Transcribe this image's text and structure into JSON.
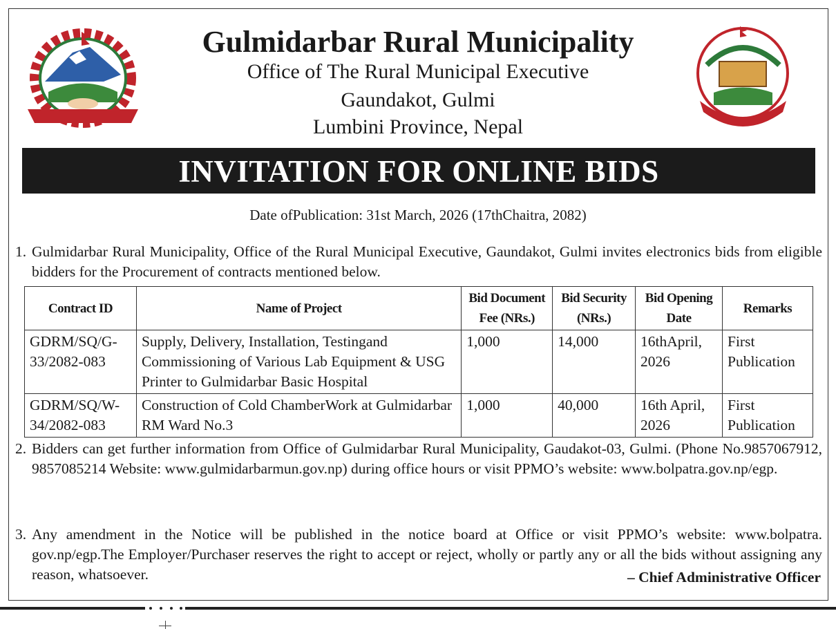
{
  "header": {
    "title": "Gulmidarbar Rural Municipality",
    "office": "Office of The Rural Municipal Executive",
    "address_line1": "Gaundakot, Gulmi",
    "address_line2": "Lumbini Province, Nepal",
    "left_logo": "nepal-government-emblem",
    "right_logo": "gulmidarbar-rural-municipality-seal"
  },
  "banner": "INVITATION FOR ONLINE BIDS",
  "publication_date": "Date ofPublication: 31st March, 2026 (17thChaitra, 2082)",
  "para1": {
    "num": "1.",
    "text": "Gulmidarbar Rural Municipality, Office of the Rural Municipal Executive, Gaundakot, Gulmi invites electronics bids from eligible bidders for the Procurement of contracts mentioned below."
  },
  "table": {
    "headers": [
      "Contract ID",
      "Name of Project",
      "Bid Document Fee (NRs.)",
      "Bid Security (NRs.)",
      "Bid Opening Date",
      "Remarks"
    ],
    "rows": [
      [
        "GDRM/SQ/G-33/2082-083",
        "Supply, Delivery, Installation, Testingand Commissioning of Various Lab Equipment & USG Printer to Gulmidarbar Basic Hospital",
        "1,000",
        "14,000",
        "16thApril, 2026",
        "First Publication"
      ],
      [
        "GDRM/SQ/W-34/2082-083",
        "Construction of Cold ChamberWork at Gulmidarbar RM Ward No.3",
        "1,000",
        "40,000",
        "16th April, 2026",
        "First Publication"
      ]
    ]
  },
  "para2": {
    "num": "2.",
    "text": "Bidders can get further information from Office of Gulmidarbar Rural Municipality, Gaudakot-03, Gulmi. (Phone No.9857067912, 9857085214 Website: www.gulmidarbarmun.gov.np) during office hours or visit PPMO’s website: www.bolpatra.gov.np/egp."
  },
  "para3": {
    "num": "3.",
    "text": "Any amendment in the Notice will be published in the notice board at Office or visit PPMO’s website: www.bolpatra. gov.np/egp.The Employer/Purchaser reserves the right to accept or reject, wholly or partly any or all the bids without assigning any reason, whatsoever."
  },
  "signature": "– Chief Administrative Officer"
}
